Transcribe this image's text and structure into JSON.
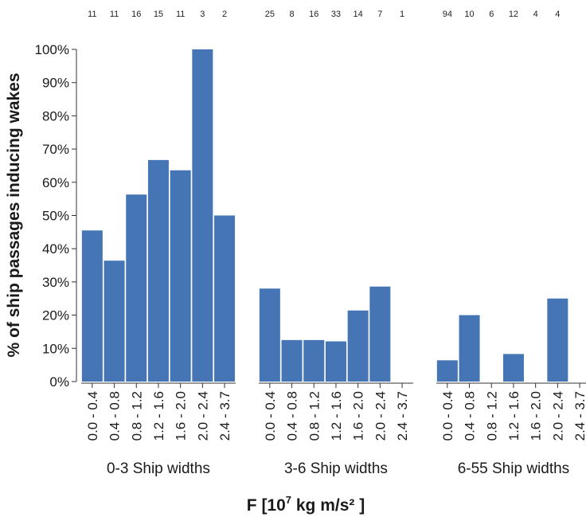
{
  "chart_data": {
    "type": "bar",
    "ylabel": "% of ship passages inducing wakes",
    "xlabel_text": "F [10",
    "xlabel_exp": "7",
    "xlabel_units": " kg m/s² ]",
    "ylim": [
      0,
      100
    ],
    "ytick_labels": [
      "0%",
      "10%",
      "20%",
      "30%",
      "40%",
      "50%",
      "60%",
      "70%",
      "80%",
      "90%",
      "100%"
    ],
    "bar_color": "#4575b4",
    "panels": [
      {
        "name": "0-3 Ship widths",
        "categories": [
          "0.0 - 0.4",
          "0.4 - 0.8",
          "0.8 - 1.2",
          "1.2 - 1.6",
          "1.6 - 2.0",
          "2.0 - 2.4",
          "2.4 - 3.7"
        ],
        "values": [
          45.5,
          36.4,
          56.3,
          66.7,
          63.6,
          100,
          50
        ],
        "counts": [
          "11",
          "11",
          "16",
          "15",
          "11",
          "3",
          "2"
        ]
      },
      {
        "name": "3-6 Ship widths",
        "categories": [
          "0.0 - 0.4",
          "0.4 - 0.8",
          "0.8 - 1.2",
          "1.2 - 1.6",
          "1.6 - 2.0",
          "2.0 - 2.4",
          "2.4 - 3.7"
        ],
        "values": [
          28,
          12.5,
          12.5,
          12.1,
          21.4,
          28.6,
          0
        ],
        "counts": [
          "25",
          "8",
          "16",
          "33",
          "14",
          "7",
          "1"
        ]
      },
      {
        "name": "6-55 Ship widths",
        "categories": [
          "0.0 - 0.4",
          "0.4 - 0.8",
          "0.8 - 1.2",
          "1.2 - 1.6",
          "1.6 - 2.0",
          "2.0 - 2.4",
          "2.4 - 3.7"
        ],
        "values": [
          6.4,
          20,
          0,
          8.3,
          0,
          25,
          null
        ],
        "counts": [
          "94",
          "10",
          "6",
          "12",
          "4",
          "4",
          ""
        ]
      }
    ]
  }
}
